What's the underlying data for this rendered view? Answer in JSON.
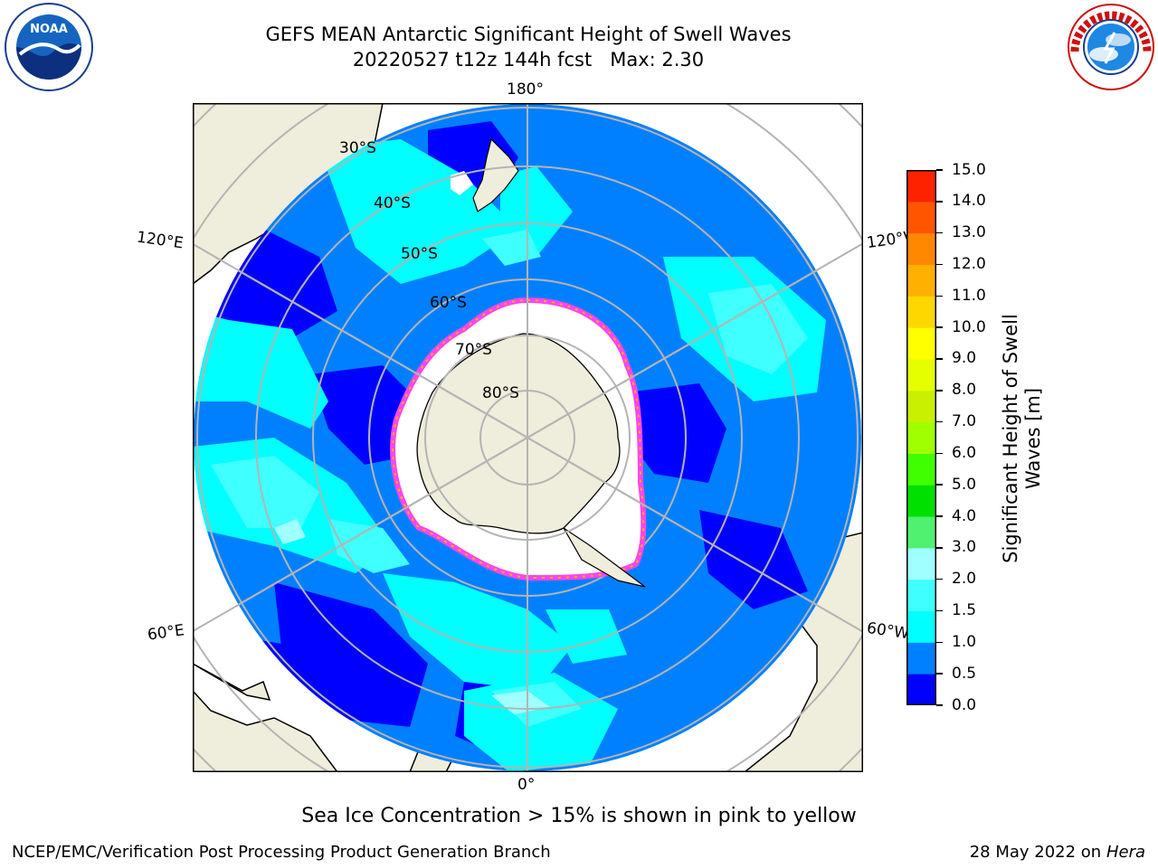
{
  "header": {
    "title_line1": "GEFS MEAN Antarctic Significant Height of Swell Waves",
    "title_line2": "20220527 t12z 144h fcst   Max: 2.30"
  },
  "map": {
    "projection": "south-polar-stereographic",
    "longitude_labels": {
      "top": "180°",
      "bottom": "0°",
      "upper_left": "120°E",
      "upper_right": "120°W",
      "lower_left": "60°E",
      "lower_right": "60°W"
    },
    "latitude_labels": [
      "30°S",
      "40°S",
      "50°S",
      "60°S",
      "70°S",
      "80°S"
    ],
    "colors": {
      "land": "#efeddb",
      "coastline": "#000000",
      "graticule": "#b4b4b4",
      "sea_ice": "#ffffff",
      "ice_edge": "#ff44ee"
    }
  },
  "colorbar": {
    "label": "Significant Height of Swell Waves [m]",
    "ticks": [
      "0.0",
      "0.5",
      "1.0",
      "1.5",
      "2.0",
      "3.0",
      "4.0",
      "5.0",
      "6.0",
      "7.0",
      "8.0",
      "9.0",
      "10.0",
      "11.0",
      "12.0",
      "13.0",
      "14.0",
      "15.0"
    ],
    "colors": [
      "#0000ff",
      "#0080ff",
      "#00ffff",
      "#40ffff",
      "#a0ffff",
      "#50f070",
      "#00e000",
      "#40ff00",
      "#a0ff00",
      "#c8f000",
      "#e6ff00",
      "#ffff00",
      "#ffd700",
      "#ffb000",
      "#ff8800",
      "#ff5500",
      "#ff2200",
      "#ff0000"
    ]
  },
  "note": "Sea Ice Concentration > 15% is shown in pink to yellow",
  "footer": {
    "left": "NCEP/EMC/Verification Post Processing Product Generation Branch",
    "right_date": "28 May 2022 on",
    "right_host": "Hera"
  },
  "logos": {
    "left": "NOAA",
    "right": "NATIONAL WEATHER SERVICE"
  }
}
